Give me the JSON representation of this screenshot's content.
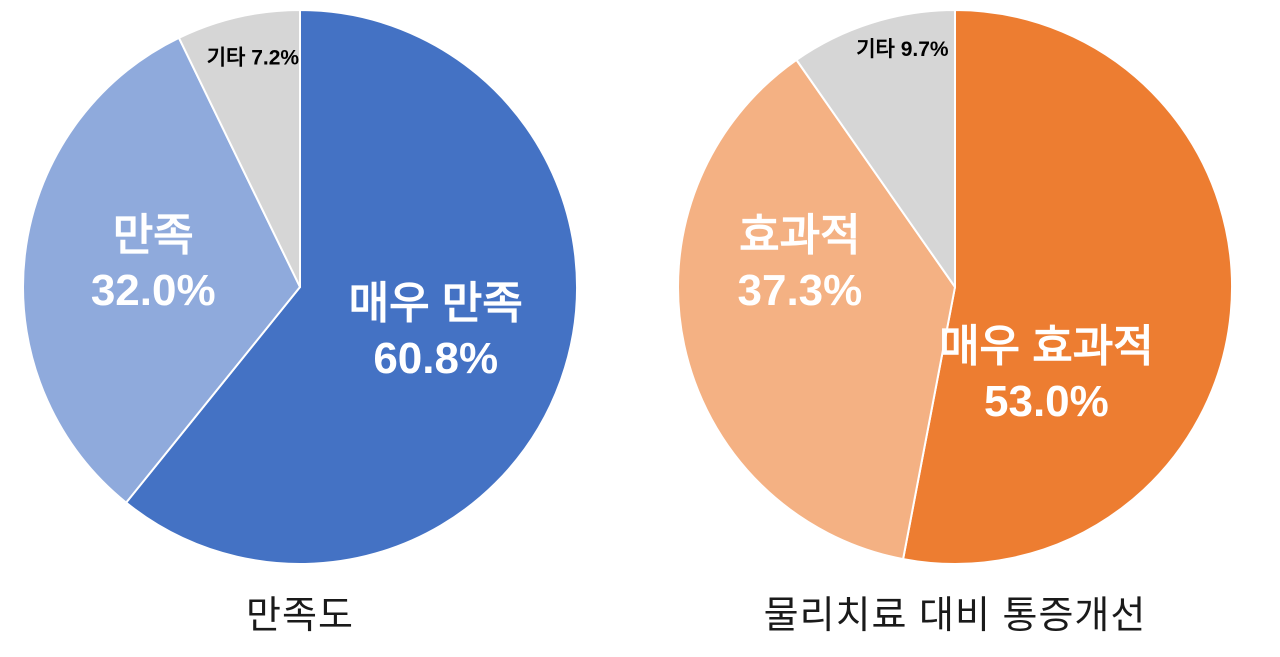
{
  "page": {
    "background_color": "#FFFFFF",
    "description": "Two pie charts: satisfaction survey and pain improvement vs physical therapy"
  },
  "chart_data": [
    {
      "type": "pie",
      "title": "만족도",
      "direction": "clockwise",
      "start_angle_deg": 0,
      "legend": "none",
      "slice_border_color": "#FFFFFF",
      "slices": [
        {
          "name": "매우 만족",
          "value": 60.8,
          "color": "#4472C4",
          "label_lines": [
            "매우 만족",
            "60.8%"
          ],
          "label_color": "#FFFFFF",
          "label_size": 44,
          "label_dx": 0.49,
          "label_dy": 0.155
        },
        {
          "name": "만족",
          "value": 32.0,
          "color": "#8FAADC",
          "label_lines": [
            "만족",
            "32.0%"
          ],
          "label_color": "#FFFFFF",
          "label_size": 44,
          "label_dx": -0.53,
          "label_dy": -0.09
        },
        {
          "name": "기타",
          "value": 7.2,
          "color": "#D6D6D6",
          "label_lines": [
            "기타 7.2%"
          ],
          "label_color": "#000000",
          "label_size": 21,
          "label_dx": -0.17,
          "label_dy": -0.83
        }
      ]
    },
    {
      "type": "pie",
      "title": "물리치료 대비 통증개선",
      "direction": "clockwise",
      "start_angle_deg": 0,
      "legend": "none",
      "slice_border_color": "#FFFFFF",
      "slices": [
        {
          "name": "매우 효과적",
          "value": 53.0,
          "color": "#ED7D31",
          "label_lines": [
            "매우 효과적",
            "53.0%"
          ],
          "label_color": "#FFFFFF",
          "label_size": 44,
          "label_dx": 0.33,
          "label_dy": 0.31
        },
        {
          "name": "효과적",
          "value": 37.3,
          "color": "#F4B183",
          "label_lines": [
            "효과적",
            "37.3%"
          ],
          "label_color": "#FFFFFF",
          "label_size": 44,
          "label_dx": -0.56,
          "label_dy": -0.09
        },
        {
          "name": "기타",
          "value": 9.7,
          "color": "#D6D6D6",
          "label_lines": [
            "기타 9.7%"
          ],
          "label_color": "#000000",
          "label_size": 21,
          "label_dx": -0.19,
          "label_dy": -0.86
        }
      ]
    }
  ]
}
